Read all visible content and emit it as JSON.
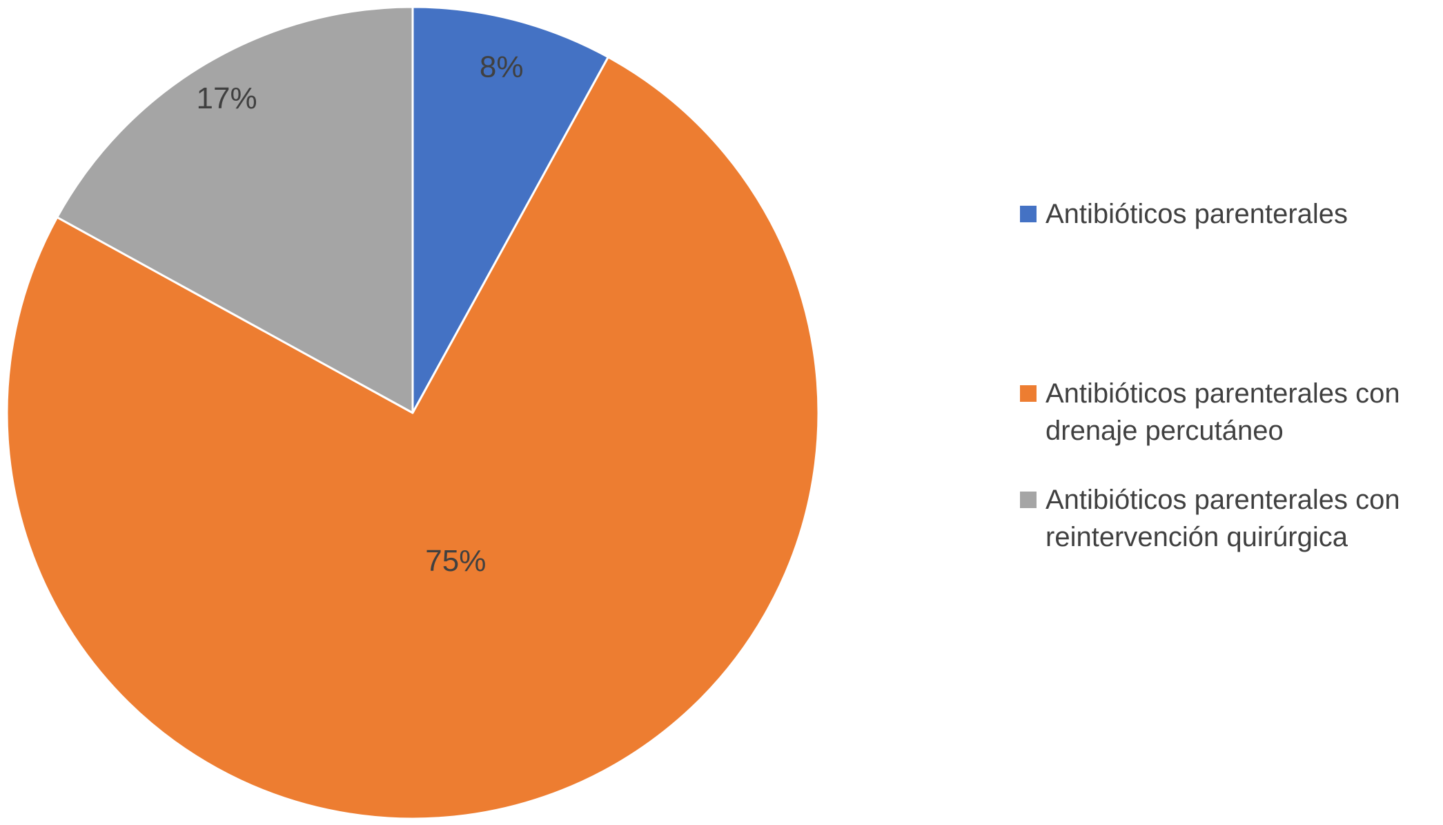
{
  "chart_data": {
    "type": "pie",
    "title": "",
    "legend_position": "right",
    "direction": "clockwise",
    "start_angle_deg": 0,
    "slice_border_color": "#FFFFFF",
    "label_color": "#404040",
    "slices": [
      {
        "label": "Antibióticos parenterales",
        "value": 8,
        "percent_label": "8%",
        "color": "#4472C4",
        "label_radius": 0.88
      },
      {
        "label": "Antibióticos parenterales con drenaje percutáneo",
        "value": 75,
        "percent_label": "75%",
        "color": "#ED7D31",
        "label_radius": 0.38
      },
      {
        "label": "Antibióticos parenterales con reintervención quirúrgica",
        "value": 17,
        "percent_label": "17%",
        "color": "#A5A5A5",
        "label_radius": 0.9
      }
    ]
  },
  "legend": {
    "items": [
      {
        "label": "Antibióticos parenterales",
        "color": "#4472C4"
      },
      {
        "label": "Antibióticos parenterales con drenaje percutáneo",
        "color": "#ED7D31"
      },
      {
        "label": "Antibióticos parenterales con reintervención quirúrgica",
        "color": "#A5A5A5"
      }
    ]
  }
}
